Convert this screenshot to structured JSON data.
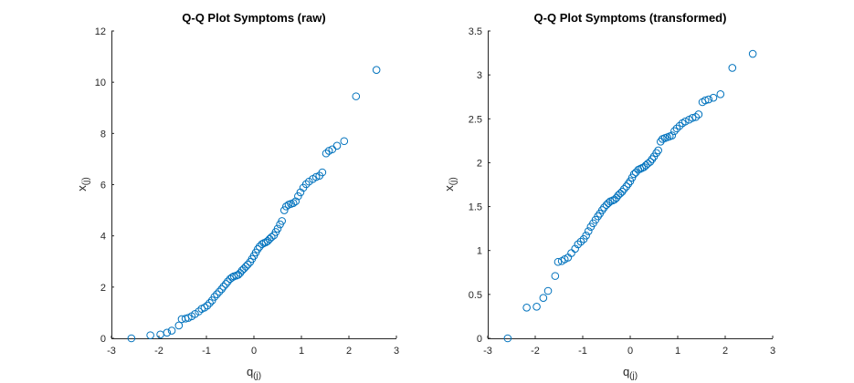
{
  "chart_data": [
    {
      "type": "scatter",
      "title": "Q-Q Plot Symptoms (raw)",
      "xlabel": "q",
      "xlabel_sub": "(j)",
      "ylabel": "x",
      "ylabel_sub": "(j)",
      "xlim": [
        -3,
        3
      ],
      "ylim": [
        0,
        12
      ],
      "xticks": [
        -3,
        -2,
        -1,
        0,
        1,
        2,
        3
      ],
      "yticks": [
        0,
        2,
        4,
        6,
        8,
        10,
        12
      ],
      "color": "#0072BD",
      "grid": false,
      "points": [
        [
          -2.58,
          0.0
        ],
        [
          -2.18,
          0.12
        ],
        [
          -1.97,
          0.15
        ],
        [
          -1.83,
          0.22
        ],
        [
          -1.73,
          0.3
        ],
        [
          -1.58,
          0.5
        ],
        [
          -1.52,
          0.75
        ],
        [
          -1.44,
          0.77
        ],
        [
          -1.38,
          0.8
        ],
        [
          -1.31,
          0.86
        ],
        [
          -1.24,
          0.95
        ],
        [
          -1.16,
          1.05
        ],
        [
          -1.1,
          1.15
        ],
        [
          -1.04,
          1.2
        ],
        [
          -0.98,
          1.28
        ],
        [
          -0.93,
          1.38
        ],
        [
          -0.88,
          1.48
        ],
        [
          -0.83,
          1.62
        ],
        [
          -0.78,
          1.72
        ],
        [
          -0.73,
          1.82
        ],
        [
          -0.68,
          1.92
        ],
        [
          -0.64,
          2.02
        ],
        [
          -0.59,
          2.12
        ],
        [
          -0.55,
          2.22
        ],
        [
          -0.5,
          2.32
        ],
        [
          -0.46,
          2.38
        ],
        [
          -0.42,
          2.42
        ],
        [
          -0.37,
          2.45
        ],
        [
          -0.33,
          2.48
        ],
        [
          -0.29,
          2.55
        ],
        [
          -0.25,
          2.65
        ],
        [
          -0.21,
          2.72
        ],
        [
          -0.17,
          2.8
        ],
        [
          -0.13,
          2.88
        ],
        [
          -0.08,
          2.98
        ],
        [
          -0.04,
          3.1
        ],
        [
          0.0,
          3.22
        ],
        [
          0.04,
          3.35
        ],
        [
          0.08,
          3.48
        ],
        [
          0.12,
          3.58
        ],
        [
          0.17,
          3.68
        ],
        [
          0.21,
          3.72
        ],
        [
          0.25,
          3.75
        ],
        [
          0.29,
          3.8
        ],
        [
          0.33,
          3.88
        ],
        [
          0.37,
          3.95
        ],
        [
          0.42,
          4.02
        ],
        [
          0.46,
          4.15
        ],
        [
          0.5,
          4.28
        ],
        [
          0.55,
          4.45
        ],
        [
          0.59,
          4.58
        ],
        [
          0.64,
          5.0
        ],
        [
          0.68,
          5.15
        ],
        [
          0.73,
          5.22
        ],
        [
          0.78,
          5.25
        ],
        [
          0.83,
          5.28
        ],
        [
          0.88,
          5.35
        ],
        [
          0.93,
          5.55
        ],
        [
          0.98,
          5.7
        ],
        [
          1.04,
          5.88
        ],
        [
          1.1,
          6.02
        ],
        [
          1.16,
          6.12
        ],
        [
          1.24,
          6.22
        ],
        [
          1.31,
          6.3
        ],
        [
          1.38,
          6.35
        ],
        [
          1.44,
          6.48
        ],
        [
          1.52,
          7.22
        ],
        [
          1.58,
          7.32
        ],
        [
          1.65,
          7.38
        ],
        [
          1.75,
          7.52
        ],
        [
          1.9,
          7.7
        ],
        [
          2.15,
          9.45
        ],
        [
          2.58,
          10.48
        ]
      ]
    },
    {
      "type": "scatter",
      "title": "Q-Q Plot Symptoms (transformed)",
      "xlabel": "q",
      "xlabel_sub": "(j)",
      "ylabel": "x",
      "ylabel_sub": "(j)",
      "xlim": [
        -3,
        3
      ],
      "ylim": [
        0,
        3.5
      ],
      "xticks": [
        -3,
        -2,
        -1,
        0,
        1,
        2,
        3
      ],
      "yticks": [
        0,
        0.5,
        1,
        1.5,
        2,
        2.5,
        3,
        3.5
      ],
      "color": "#0072BD",
      "grid": false,
      "points": [
        [
          -2.58,
          0.0
        ],
        [
          -2.18,
          0.35
        ],
        [
          -1.97,
          0.36
        ],
        [
          -1.83,
          0.46
        ],
        [
          -1.73,
          0.54
        ],
        [
          -1.58,
          0.71
        ],
        [
          -1.52,
          0.87
        ],
        [
          -1.44,
          0.88
        ],
        [
          -1.38,
          0.9
        ],
        [
          -1.31,
          0.92
        ],
        [
          -1.24,
          0.97
        ],
        [
          -1.16,
          1.02
        ],
        [
          -1.1,
          1.07
        ],
        [
          -1.04,
          1.1
        ],
        [
          -0.98,
          1.13
        ],
        [
          -0.93,
          1.17
        ],
        [
          -0.88,
          1.22
        ],
        [
          -0.83,
          1.27
        ],
        [
          -0.78,
          1.31
        ],
        [
          -0.73,
          1.35
        ],
        [
          -0.68,
          1.39
        ],
        [
          -0.64,
          1.42
        ],
        [
          -0.59,
          1.46
        ],
        [
          -0.55,
          1.49
        ],
        [
          -0.5,
          1.52
        ],
        [
          -0.46,
          1.54
        ],
        [
          -0.42,
          1.56
        ],
        [
          -0.37,
          1.57
        ],
        [
          -0.33,
          1.58
        ],
        [
          -0.29,
          1.6
        ],
        [
          -0.25,
          1.63
        ],
        [
          -0.21,
          1.65
        ],
        [
          -0.17,
          1.67
        ],
        [
          -0.13,
          1.7
        ],
        [
          -0.08,
          1.73
        ],
        [
          -0.04,
          1.76
        ],
        [
          0.0,
          1.79
        ],
        [
          0.04,
          1.83
        ],
        [
          0.08,
          1.87
        ],
        [
          0.12,
          1.89
        ],
        [
          0.17,
          1.92
        ],
        [
          0.21,
          1.93
        ],
        [
          0.25,
          1.94
        ],
        [
          0.29,
          1.95
        ],
        [
          0.33,
          1.97
        ],
        [
          0.37,
          1.99
        ],
        [
          0.42,
          2.01
        ],
        [
          0.46,
          2.04
        ],
        [
          0.5,
          2.07
        ],
        [
          0.55,
          2.11
        ],
        [
          0.59,
          2.14
        ],
        [
          0.64,
          2.24
        ],
        [
          0.68,
          2.27
        ],
        [
          0.73,
          2.28
        ],
        [
          0.78,
          2.29
        ],
        [
          0.83,
          2.3
        ],
        [
          0.88,
          2.31
        ],
        [
          0.93,
          2.36
        ],
        [
          0.98,
          2.39
        ],
        [
          1.04,
          2.42
        ],
        [
          1.1,
          2.45
        ],
        [
          1.16,
          2.47
        ],
        [
          1.24,
          2.49
        ],
        [
          1.31,
          2.51
        ],
        [
          1.38,
          2.52
        ],
        [
          1.44,
          2.55
        ],
        [
          1.52,
          2.69
        ],
        [
          1.58,
          2.71
        ],
        [
          1.65,
          2.72
        ],
        [
          1.75,
          2.74
        ],
        [
          1.9,
          2.78
        ],
        [
          2.15,
          3.08
        ],
        [
          2.58,
          3.24
        ]
      ]
    }
  ]
}
